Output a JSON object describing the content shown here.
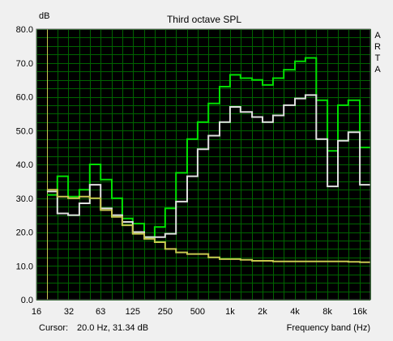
{
  "window": {
    "background": "#f0f0f0",
    "plot_background": "#000000",
    "grid_color": "#006400",
    "vertical_marker_color": "#c8c850"
  },
  "header": {
    "y_unit": "dB",
    "title": "Third octave SPL",
    "brand_letters": [
      "A",
      "R",
      "T",
      "A"
    ]
  },
  "footer": {
    "cursor_label": "Cursor:",
    "cursor_value": "20.0 Hz, 31.34 dB",
    "x_caption": "Frequency band (Hz)"
  },
  "chart_data": {
    "type": "line",
    "title": "Third octave SPL",
    "xlabel": "Frequency band (Hz)",
    "ylabel": "dB",
    "x_scale": "log",
    "xlim": [
      16,
      20000
    ],
    "ylim": [
      0,
      80
    ],
    "grid": true,
    "y_ticks": [
      0,
      10,
      20,
      30,
      40,
      50,
      60,
      70,
      80
    ],
    "y_tick_labels": [
      "0.0",
      "10.0",
      "20.0",
      "30.0",
      "40.0",
      "50.0",
      "60.0",
      "70.0",
      "80.0"
    ],
    "x_ticks": [
      16,
      32,
      63,
      125,
      250,
      500,
      1000,
      2000,
      4000,
      8000,
      16000
    ],
    "x_tick_labels": [
      "16",
      "32",
      "63",
      "125",
      "250",
      "500",
      "1k",
      "2k",
      "4k",
      "8k",
      "16k"
    ],
    "x_grid": [
      16,
      20,
      25,
      31.5,
      40,
      50,
      63,
      80,
      100,
      125,
      160,
      200,
      250,
      315,
      400,
      500,
      630,
      800,
      1000,
      1250,
      1600,
      2000,
      2500,
      3150,
      4000,
      5000,
      6300,
      8000,
      10000,
      12500,
      16000,
      20000
    ],
    "cursor_marker_x": 20,
    "categories": [
      20,
      25,
      31.5,
      40,
      50,
      63,
      80,
      100,
      125,
      160,
      200,
      250,
      315,
      400,
      500,
      630,
      800,
      1000,
      1250,
      1600,
      2000,
      2500,
      3150,
      4000,
      5000,
      6300,
      8000,
      10000,
      12500,
      16000
    ],
    "series": [
      {
        "color": "#00e000",
        "values": [
          31,
          36.5,
          30.5,
          32.5,
          40,
          35.5,
          30,
          24,
          22.5,
          18.5,
          21.5,
          27,
          37.5,
          47.5,
          52.5,
          58,
          63,
          66.5,
          65.5,
          65,
          63.5,
          65.5,
          68,
          70.5,
          71.5,
          59,
          44,
          57.5,
          59,
          45
        ]
      },
      {
        "color": "#e0e0e0",
        "values": [
          32,
          25.5,
          25,
          28.5,
          34,
          27,
          25,
          23,
          20,
          18.5,
          18.5,
          19.5,
          29,
          36.5,
          44.5,
          48.5,
          52.5,
          57,
          55.5,
          54,
          52.5,
          54.5,
          57.5,
          59.5,
          60.5,
          47.5,
          33.5,
          47,
          49.5,
          34
        ]
      },
      {
        "color": "#c8c850",
        "values": [
          32.5,
          30.5,
          30,
          30.5,
          30,
          26.5,
          24.5,
          22,
          19.5,
          18,
          17,
          15,
          14,
          13.5,
          13.5,
          12.5,
          12,
          12,
          11.8,
          11.5,
          11.5,
          11.3,
          11.3,
          11.3,
          11.3,
          11.3,
          11.3,
          11.3,
          11.2,
          11.1
        ]
      }
    ]
  }
}
